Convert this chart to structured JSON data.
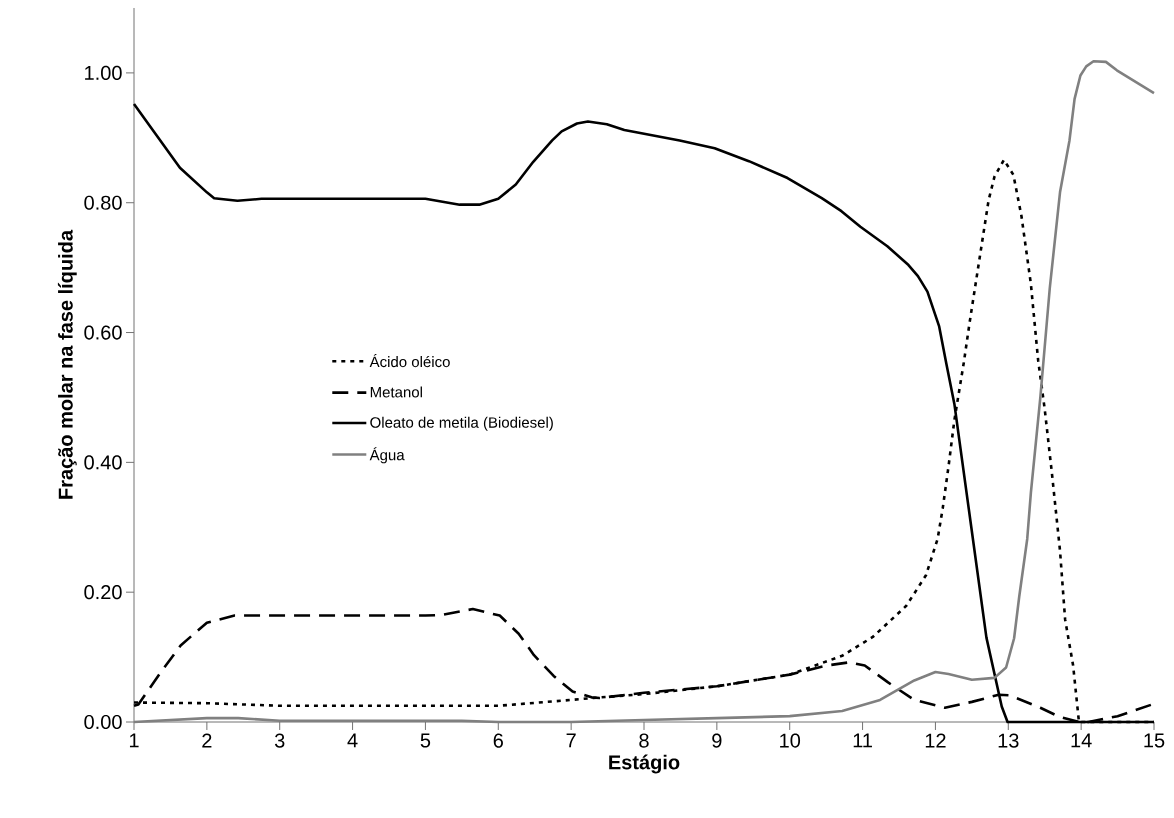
{
  "chart_data": {
    "type": "line",
    "xlabel": "Estágio",
    "ylabel": "Fração molar na fase líquida",
    "xlim": [
      1,
      15
    ],
    "xticks": [
      1,
      2,
      3,
      4,
      5,
      6,
      7,
      8,
      9,
      10,
      11,
      12,
      13,
      14,
      15
    ],
    "ylim": [
      0,
      1.1
    ],
    "yticks": [
      {
        "value": 0,
        "label": "0.00"
      },
      {
        "value": 0.2,
        "label": "0.20"
      },
      {
        "value": 0.4,
        "label": "0.40"
      },
      {
        "value": 0.6,
        "label": "0.60"
      },
      {
        "value": 0.8,
        "label": "0.80"
      },
      {
        "value": 1.0,
        "label": "1.00"
      }
    ],
    "grid": false,
    "legend": "left",
    "marker": "none",
    "series": [
      {
        "name": "Ácido oléico",
        "color": "#000000",
        "line_style": "dotted",
        "x": [
          1,
          2,
          3,
          4,
          5,
          6,
          7,
          7.3,
          8,
          9,
          10,
          10.72,
          11.14,
          11.6,
          11.87,
          12.03,
          12.1,
          12.18,
          12.26,
          12.39,
          12.47,
          12.6,
          12.73,
          12.81,
          12.94,
          13.07,
          13.18,
          13.31,
          13.41,
          13.5,
          13.6,
          13.71,
          13.78,
          13.89,
          13.97,
          14,
          15
        ],
        "values": [
          0.03,
          0.029,
          0.025,
          0.025,
          0.025,
          0.025,
          0.034,
          0.037,
          0.043,
          0.055,
          0.073,
          0.102,
          0.131,
          0.179,
          0.226,
          0.282,
          0.329,
          0.394,
          0.465,
          0.554,
          0.616,
          0.71,
          0.804,
          0.84,
          0.866,
          0.843,
          0.78,
          0.675,
          0.557,
          0.482,
          0.382,
          0.264,
          0.158,
          0.087,
          0,
          0,
          0
        ]
      },
      {
        "name": "Metanol",
        "color": "#000000",
        "line_style": "dashed",
        "x": [
          1,
          1.06,
          1.37,
          1.64,
          2.0,
          2.38,
          3,
          4,
          5,
          5.23,
          5.65,
          6.02,
          6.28,
          6.49,
          6.76,
          7.02,
          7.28,
          7.39,
          8,
          9,
          10,
          10.51,
          10.82,
          11.03,
          11.35,
          11.71,
          12.13,
          12.5,
          12.87,
          13.02,
          13.44,
          13.7,
          13.97,
          14.1,
          14.5,
          15
        ],
        "values": [
          0.025,
          0.027,
          0.077,
          0.118,
          0.153,
          0.164,
          0.164,
          0.164,
          0.164,
          0.165,
          0.174,
          0.164,
          0.136,
          0.103,
          0.071,
          0.047,
          0.038,
          0.037,
          0.045,
          0.055,
          0.073,
          0.087,
          0.092,
          0.087,
          0.061,
          0.034,
          0.022,
          0.031,
          0.042,
          0.041,
          0.022,
          0.008,
          0,
          0,
          0.009,
          0.028
        ]
      },
      {
        "name": "Oleato de metila (Biodiesel)",
        "color": "#000000",
        "line_style": "solid",
        "x": [
          1,
          1.63,
          2.0,
          2.1,
          2.42,
          2.75,
          3,
          4,
          5,
          5.47,
          5.74,
          6.0,
          6.24,
          6.48,
          6.74,
          6.87,
          7.08,
          7.23,
          7.49,
          7.73,
          8.49,
          8.97,
          9.44,
          9.97,
          10.44,
          10.71,
          10.97,
          11.34,
          11.63,
          11.76,
          11.89,
          12.05,
          12.15,
          12.26,
          12.49,
          12.7,
          12.91,
          12.99,
          14,
          15
        ],
        "values": [
          0.952,
          0.854,
          0.816,
          0.807,
          0.803,
          0.806,
          0.806,
          0.806,
          0.806,
          0.797,
          0.797,
          0.806,
          0.828,
          0.863,
          0.896,
          0.91,
          0.922,
          0.925,
          0.921,
          0.912,
          0.896,
          0.884,
          0.864,
          0.838,
          0.807,
          0.787,
          0.763,
          0.733,
          0.704,
          0.687,
          0.663,
          0.61,
          0.552,
          0.49,
          0.302,
          0.13,
          0.024,
          0,
          0,
          0
        ]
      },
      {
        "name": "Água",
        "color": "#808080",
        "line_style": "solid",
        "x": [
          1,
          2,
          2.43,
          3,
          4,
          5,
          5.5,
          6,
          7,
          8,
          9,
          10,
          10.72,
          11.24,
          11.71,
          12.0,
          12.18,
          12.5,
          12.81,
          12.97,
          13.08,
          13.15,
          13.26,
          13.31,
          13.44,
          13.57,
          13.71,
          13.84,
          13.91,
          13.99,
          14.07,
          14.17,
          14.34,
          14.49,
          15
        ],
        "values": [
          0,
          0.006,
          0.006,
          0.002,
          0.002,
          0.002,
          0.002,
          0,
          0,
          0.003,
          0.006,
          0.009,
          0.017,
          0.034,
          0.064,
          0.077,
          0.074,
          0.065,
          0.068,
          0.084,
          0.129,
          0.193,
          0.282,
          0.353,
          0.5,
          0.669,
          0.816,
          0.896,
          0.96,
          0.996,
          1.01,
          1.018,
          1.017,
          1.004,
          0.969
        ]
      }
    ]
  }
}
